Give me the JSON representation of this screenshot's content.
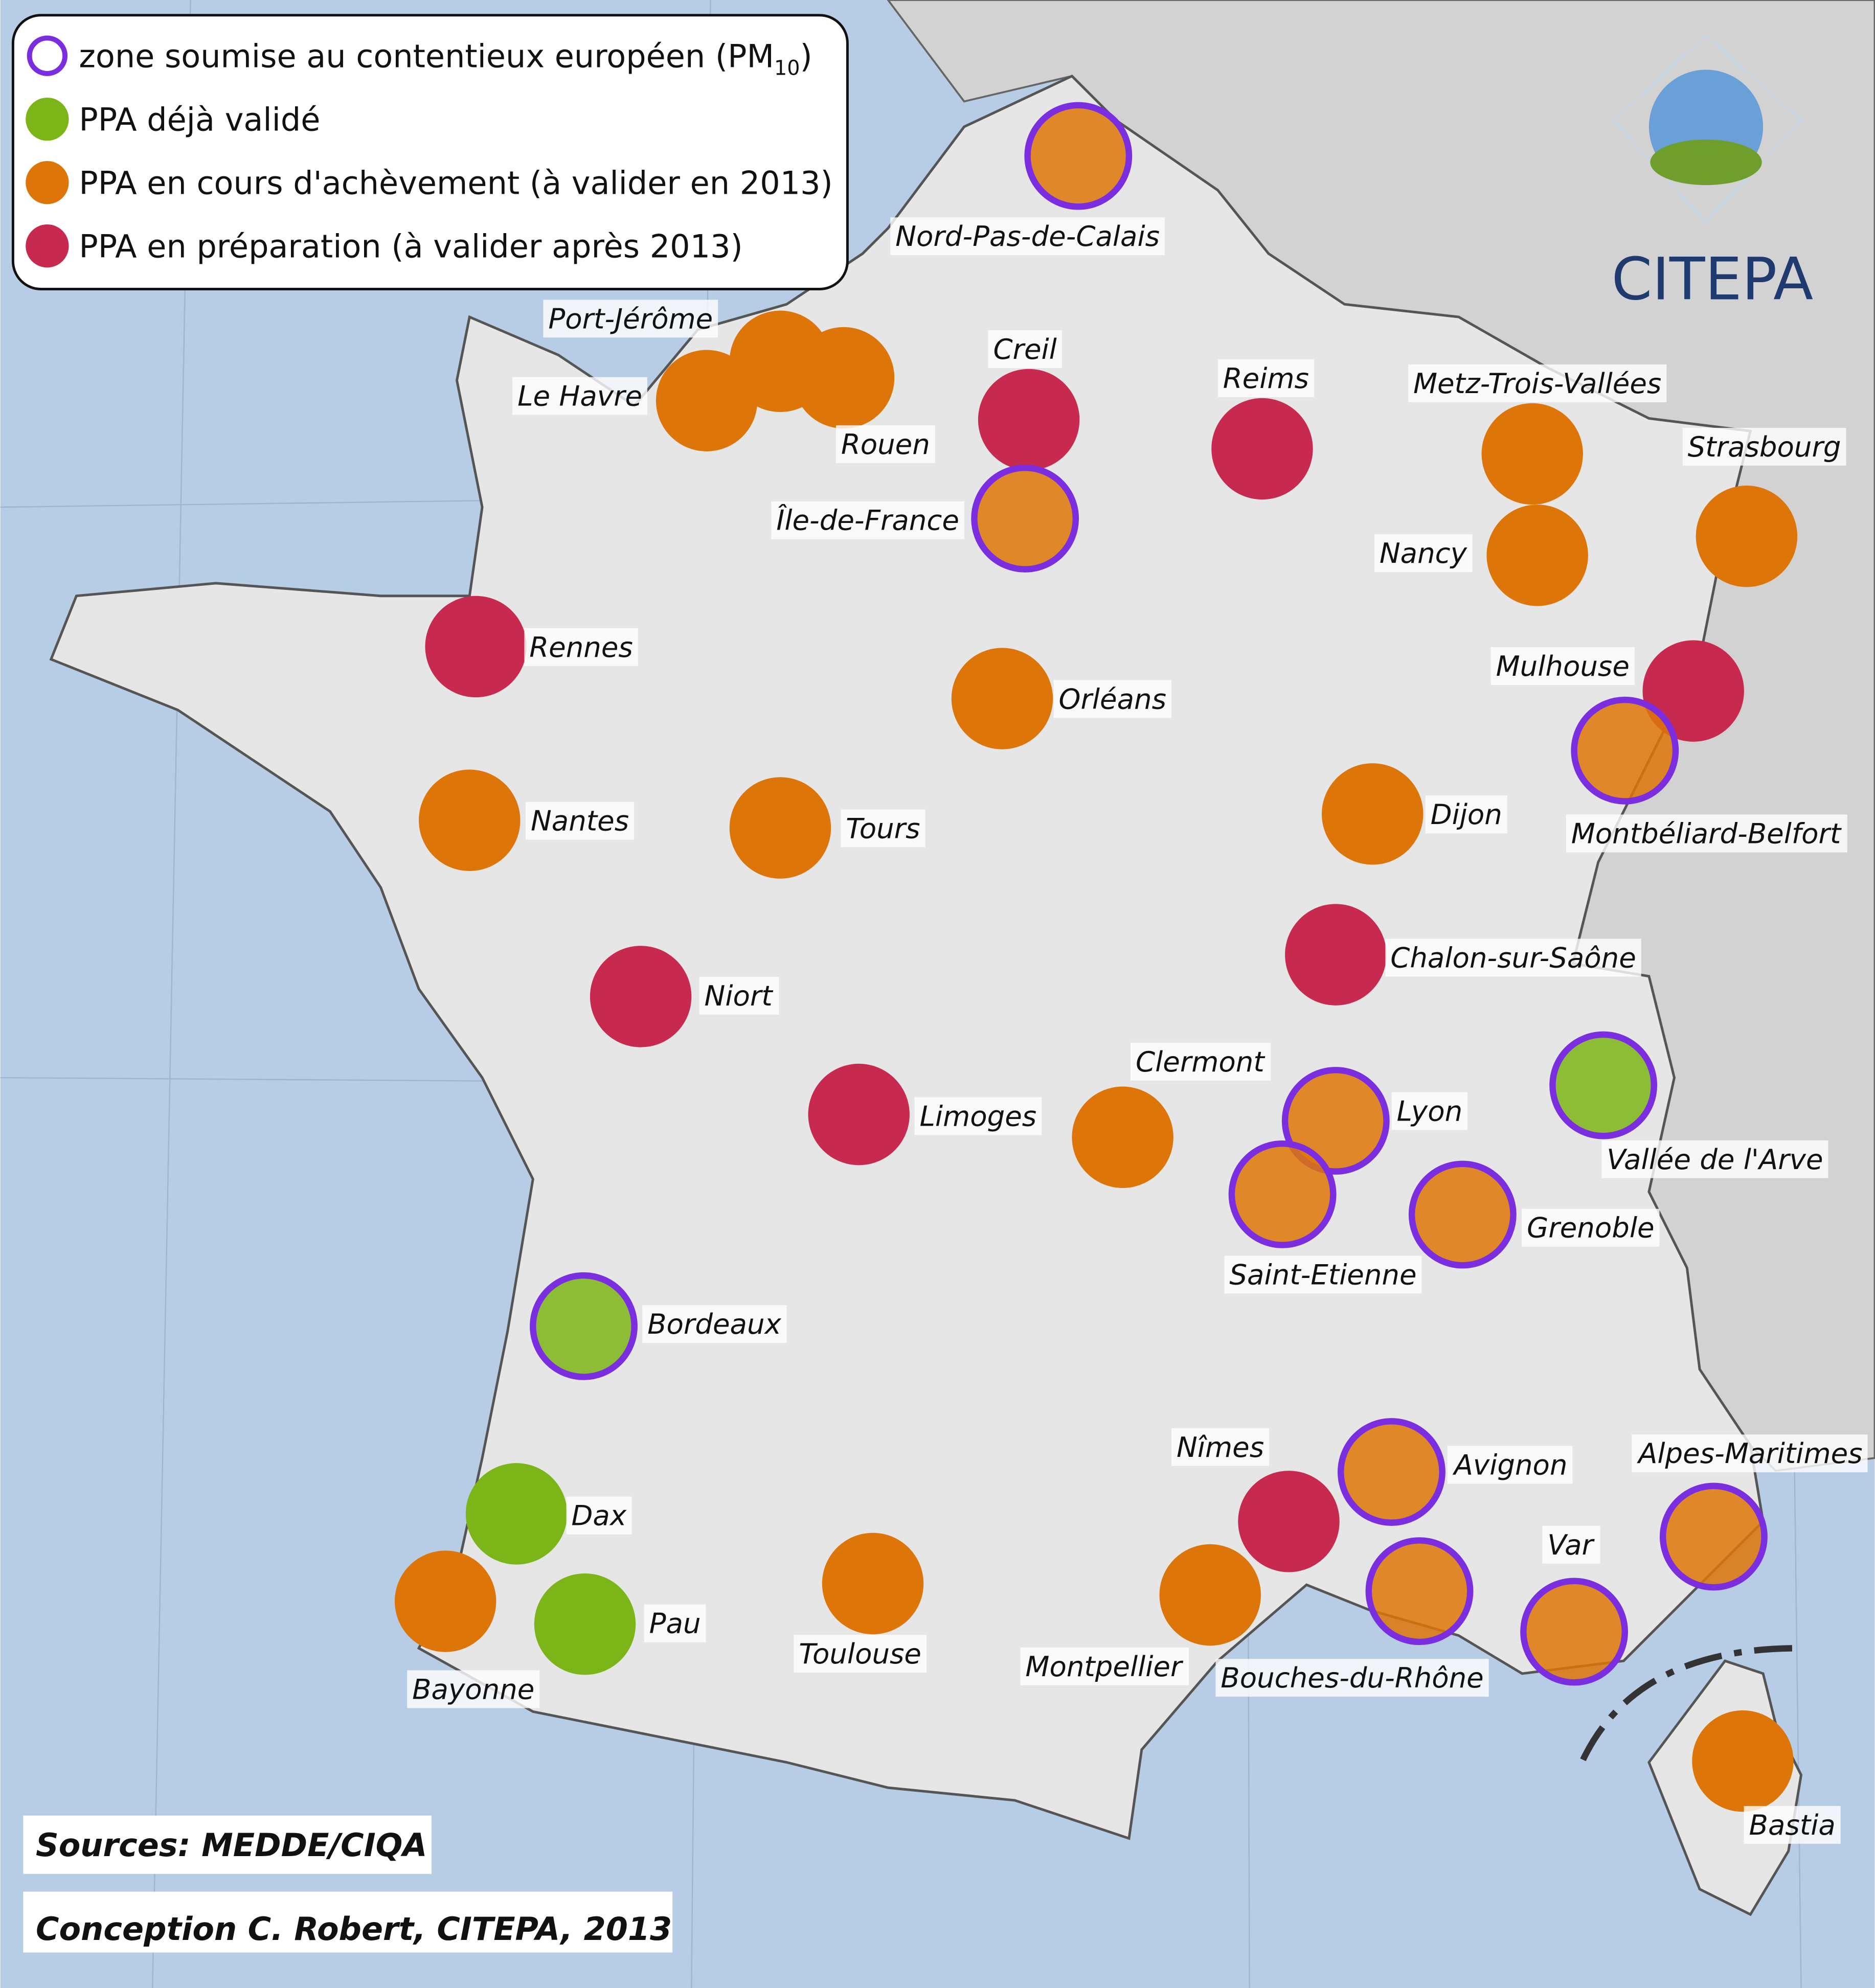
{
  "legend": {
    "items": [
      {
        "label": "zone soumise au contentieux européen (PM",
        "subscript": "10",
        "suffix": ")",
        "color": "#7a2ee0"
      },
      {
        "label": "PPA déjà validé",
        "color": "#7cb518"
      },
      {
        "label": "PPA en cours d'achèvement (à valider en 2013)",
        "color": "#de7508"
      },
      {
        "label": "PPA en préparation (à valider après 2013)",
        "color": "#c82a4f"
      }
    ]
  },
  "zones": [
    {
      "name": "Nord-Pas-de-Calais",
      "status": 2,
      "contentieux": true
    },
    {
      "name": "Port-Jérôme",
      "status": 2,
      "contentieux": false
    },
    {
      "name": "Le Havre",
      "status": 2,
      "contentieux": false
    },
    {
      "name": "Rouen",
      "status": 2,
      "contentieux": false
    },
    {
      "name": "Creil",
      "status": 3,
      "contentieux": false
    },
    {
      "name": "Île-de-France",
      "status": 2,
      "contentieux": true
    },
    {
      "name": "Reims",
      "status": 3,
      "contentieux": false
    },
    {
      "name": "Metz-Trois-Vallées",
      "status": 2,
      "contentieux": false
    },
    {
      "name": "Strasbourg",
      "status": 2,
      "contentieux": false
    },
    {
      "name": "Nancy",
      "status": 2,
      "contentieux": false
    },
    {
      "name": "Rennes",
      "status": 3,
      "contentieux": false
    },
    {
      "name": "Orléans",
      "status": 2,
      "contentieux": false
    },
    {
      "name": "Mulhouse",
      "status": 3,
      "contentieux": false
    },
    {
      "name": "Montbéliard-Belfort",
      "status": 2,
      "contentieux": true
    },
    {
      "name": "Nantes",
      "status": 2,
      "contentieux": false
    },
    {
      "name": "Tours",
      "status": 2,
      "contentieux": false
    },
    {
      "name": "Dijon",
      "status": 2,
      "contentieux": false
    },
    {
      "name": "Chalon-sur-Saône",
      "status": 3,
      "contentieux": false
    },
    {
      "name": "Niort",
      "status": 3,
      "contentieux": false
    },
    {
      "name": "Limoges",
      "status": 3,
      "contentieux": false
    },
    {
      "name": "Clermont",
      "status": 2,
      "contentieux": false
    },
    {
      "name": "Lyon",
      "status": 2,
      "contentieux": true
    },
    {
      "name": "Vallée de l'Arve",
      "status": 1,
      "contentieux": true
    },
    {
      "name": "Saint-Etienne",
      "status": 2,
      "contentieux": true
    },
    {
      "name": "Grenoble",
      "status": 2,
      "contentieux": true
    },
    {
      "name": "Bordeaux",
      "status": 1,
      "contentieux": true
    },
    {
      "name": "Nîmes",
      "status": 3,
      "contentieux": false
    },
    {
      "name": "Avignon",
      "status": 2,
      "contentieux": true
    },
    {
      "name": "Alpes-Maritimes",
      "status": 2,
      "contentieux": true
    },
    {
      "name": "Var",
      "status": 2,
      "contentieux": true
    },
    {
      "name": "Bouches-du-Rhône",
      "status": 2,
      "contentieux": true
    },
    {
      "name": "Dax",
      "status": 1,
      "contentieux": false
    },
    {
      "name": "Pau",
      "status": 1,
      "contentieux": false
    },
    {
      "name": "Bayonne",
      "status": 2,
      "contentieux": false
    },
    {
      "name": "Toulouse",
      "status": 2,
      "contentieux": false
    },
    {
      "name": "Montpellier",
      "status": 2,
      "contentieux": false
    },
    {
      "name": "Bastia",
      "status": 2,
      "contentieux": false
    }
  ],
  "sources": "Sources: MEDDE/CIQA",
  "credit": "Conception C. Robert, CITEPA, 2013",
  "logo": "CITEPA"
}
